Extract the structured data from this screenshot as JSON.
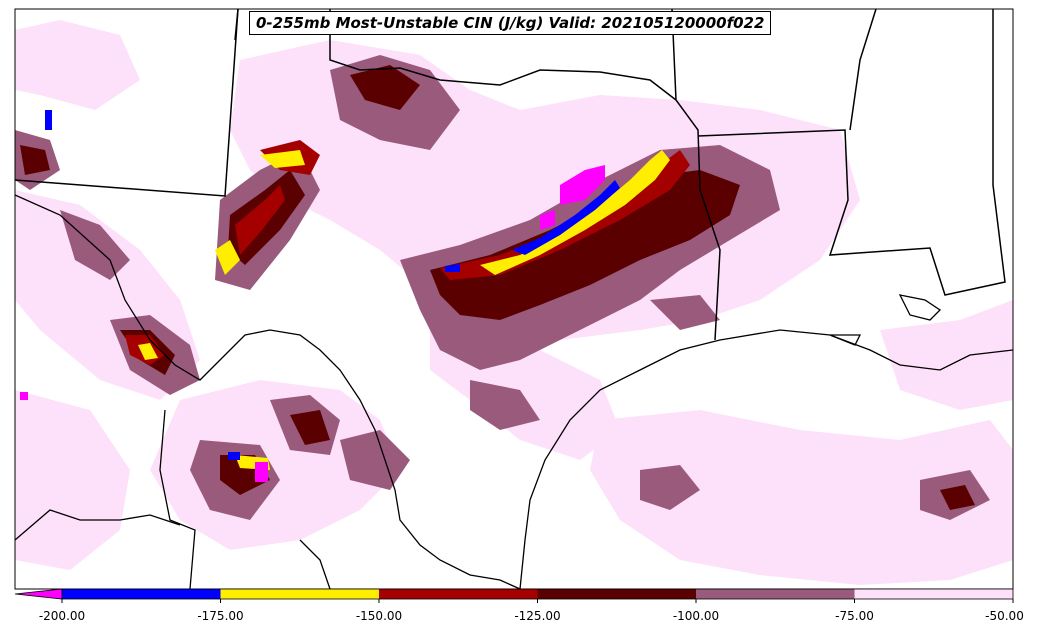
{
  "map": {
    "title": "0-255mb Most-Unstable CIN (J/kg) Valid: 202105120000f022"
  },
  "colorbar": {
    "extend": "min",
    "below_min_color": "#ff00ff",
    "bins": [
      {
        "from": -200,
        "to": -175,
        "color": "#0000ff"
      },
      {
        "from": -175,
        "to": -150,
        "color": "#ffee00"
      },
      {
        "from": -150,
        "to": -125,
        "color": "#a50000"
      },
      {
        "from": -125,
        "to": -100,
        "color": "#5a0000"
      },
      {
        "from": -100,
        "to": -75,
        "color": "#9a5a7c"
      },
      {
        "from": -75,
        "to": -50,
        "color": "#fde0fa"
      }
    ],
    "tick_labels": [
      "-200.00",
      "-175.00",
      "-150.00",
      "-125.00",
      "-100.00",
      "-75.00",
      "-50.00"
    ]
  }
}
